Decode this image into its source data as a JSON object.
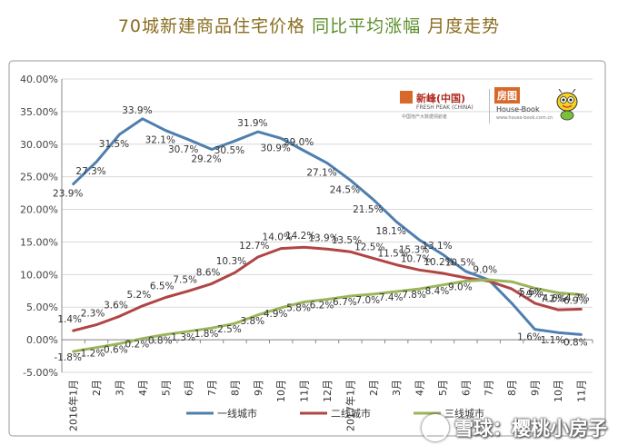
{
  "title": {
    "part1": "70城新建商品住宅价格",
    "part2": "同比平均涨幅",
    "part3": "月度走势"
  },
  "logo": {
    "left_cn": "新峰(中国)",
    "left_en": "FRESH PEAK (CHINA)",
    "left_sub": "中国地产大数据领航者",
    "right_cn": "房图",
    "right_en": "House-Book",
    "right_url": "www.house-book.com.cn"
  },
  "watermark": "雪球：樱桃小房子",
  "colors": {
    "tier1": "#4f7fae",
    "tier2": "#b04545",
    "tier3": "#9bb55a",
    "axis": "#888888",
    "grid": "#d9d9d9",
    "border": "#999999"
  },
  "chart_data": {
    "type": "line",
    "ylim": [
      -5,
      40
    ],
    "yticks": [
      "-5.00%",
      "0.00%",
      "5.00%",
      "10.00%",
      "15.00%",
      "20.00%",
      "25.00%",
      "30.00%",
      "35.00%",
      "40.00%"
    ],
    "categories": [
      "2016年1月",
      "2月",
      "3月",
      "4月",
      "5月",
      "6月",
      "7月",
      "8月",
      "9月",
      "10月",
      "11月",
      "12月",
      "2017年1月",
      "2月",
      "3月",
      "4月",
      "5月",
      "6月",
      "7月",
      "8月",
      "9月",
      "10月",
      "11月"
    ],
    "series": [
      {
        "name": "一线城市",
        "values": [
          23.9,
          27.3,
          31.5,
          33.9,
          32.1,
          30.7,
          29.2,
          30.5,
          31.9,
          30.9,
          29.0,
          27.1,
          24.5,
          21.5,
          18.1,
          15.3,
          13.1,
          10.5,
          9.2,
          5.6,
          1.6,
          1.1,
          0.8
        ],
        "labels": [
          "23.9%",
          "27.3%",
          "31.5%",
          "33.9%",
          "32.1%",
          "30.7%",
          "29.2%",
          "30.5%",
          "31.9%",
          "30.9%",
          "29.0%",
          "27.1%",
          "24.5%",
          "21.5%",
          "18.1%",
          "15.3%",
          "13.1%",
          "10.5%",
          "",
          "",
          "1.6%",
          "1.1%",
          "0.8%"
        ]
      },
      {
        "name": "二线城市",
        "values": [
          1.4,
          2.3,
          3.6,
          5.2,
          6.5,
          7.5,
          8.6,
          10.3,
          12.7,
          14.0,
          14.2,
          13.9,
          13.5,
          12.5,
          11.5,
          10.7,
          10.2,
          9.5,
          9.0,
          7.8,
          5.6,
          4.6,
          4.7
        ],
        "labels": [
          "1.4%",
          "2.3%",
          "3.6%",
          "5.2%",
          "6.5%",
          "7.5%",
          "8.6%",
          "10.3%",
          "12.7%",
          "14.0%",
          "14.2%",
          "13.9%",
          "13.5%",
          "12.5%",
          "11.5%",
          "10.7%",
          "10.2%",
          "",
          "9.0%",
          "",
          "5.6%",
          "4.6%",
          "4.7%"
        ]
      },
      {
        "name": "三线城市",
        "values": [
          -1.8,
          -1.2,
          -0.6,
          0.2,
          0.8,
          1.3,
          1.8,
          2.5,
          3.8,
          4.9,
          5.8,
          6.2,
          6.7,
          7.0,
          7.4,
          7.8,
          8.4,
          9.0,
          9.2,
          8.9,
          7.9,
          7.2,
          6.9
        ],
        "labels": [
          "-1.8%",
          "-1.2%",
          "-0.6%",
          "0.2%",
          "0.8%",
          "1.3%",
          "1.8%",
          "2.5%",
          "3.8%",
          "4.9%",
          "5.8%",
          "6.2%",
          "6.7%",
          "7.0%",
          "7.4%",
          "7.8%",
          "8.4%",
          "9.0%",
          "",
          "",
          "7.9%",
          "7.2%",
          "6.9%"
        ]
      }
    ],
    "legend_position": "bottom"
  }
}
